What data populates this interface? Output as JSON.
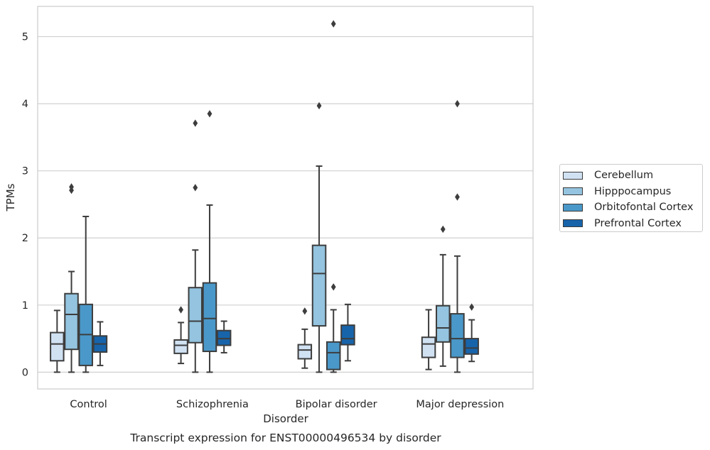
{
  "chart_data": {
    "type": "box",
    "title": "Transcript expression for ENST00000496534 by disorder",
    "xlabel": "Disorder",
    "ylabel": "TPMs",
    "ylim": [
      -0.25,
      5.45
    ],
    "yticks": [
      0,
      1,
      2,
      3,
      4,
      5
    ],
    "grid": true,
    "legend_position": "right",
    "categories": [
      "Control",
      "Schizophrenia",
      "Bipolar disorder",
      "Major depression"
    ],
    "series": [
      {
        "name": "Cerebellum",
        "color": "#d0e1f2",
        "boxes": [
          {
            "whislo": 0.0,
            "q1": 0.17,
            "med": 0.42,
            "q3": 0.59,
            "whishi": 0.92,
            "fliers": []
          },
          {
            "whislo": 0.13,
            "q1": 0.28,
            "med": 0.4,
            "q3": 0.48,
            "whishi": 0.74,
            "fliers": [
              0.93
            ]
          },
          {
            "whislo": 0.06,
            "q1": 0.2,
            "med": 0.33,
            "q3": 0.41,
            "whishi": 0.64,
            "fliers": [
              0.91
            ]
          },
          {
            "whislo": 0.04,
            "q1": 0.22,
            "med": 0.42,
            "q3": 0.52,
            "whishi": 0.93,
            "fliers": []
          }
        ]
      },
      {
        "name": "Hipppocampus",
        "color": "#94c4df",
        "boxes": [
          {
            "whislo": 0.0,
            "q1": 0.34,
            "med": 0.86,
            "q3": 1.17,
            "whishi": 1.5,
            "fliers": [
              2.71,
              2.76
            ]
          },
          {
            "whislo": 0.0,
            "q1": 0.44,
            "med": 0.76,
            "q3": 1.26,
            "whishi": 1.82,
            "fliers": [
              2.75,
              3.71
            ]
          },
          {
            "whislo": 0.0,
            "q1": 0.69,
            "med": 1.47,
            "q3": 1.89,
            "whishi": 3.07,
            "fliers": [
              3.97
            ]
          },
          {
            "whislo": 0.09,
            "q1": 0.45,
            "med": 0.66,
            "q3": 0.99,
            "whishi": 1.75,
            "fliers": [
              2.13
            ]
          }
        ]
      },
      {
        "name": "Orbitofontal Cortex",
        "color": "#4a98c9",
        "boxes": [
          {
            "whislo": 0.0,
            "q1": 0.1,
            "med": 0.56,
            "q3": 1.01,
            "whishi": 2.32,
            "fliers": []
          },
          {
            "whislo": 0.0,
            "q1": 0.31,
            "med": 0.8,
            "q3": 1.33,
            "whishi": 2.49,
            "fliers": [
              3.85
            ]
          },
          {
            "whislo": 0.0,
            "q1": 0.04,
            "med": 0.29,
            "q3": 0.45,
            "whishi": 0.93,
            "fliers": [
              1.27,
              5.19
            ]
          },
          {
            "whislo": 0.0,
            "q1": 0.22,
            "med": 0.5,
            "q3": 0.87,
            "whishi": 1.73,
            "fliers": [
              2.61,
              4.0
            ]
          }
        ]
      },
      {
        "name": "Prefrontal Cortex",
        "color": "#1764ab",
        "boxes": [
          {
            "whislo": 0.1,
            "q1": 0.3,
            "med": 0.42,
            "q3": 0.54,
            "whishi": 0.75,
            "fliers": []
          },
          {
            "whislo": 0.29,
            "q1": 0.4,
            "med": 0.5,
            "q3": 0.62,
            "whishi": 0.76,
            "fliers": []
          },
          {
            "whislo": 0.17,
            "q1": 0.41,
            "med": 0.5,
            "q3": 0.7,
            "whishi": 1.01,
            "fliers": []
          },
          {
            "whislo": 0.16,
            "q1": 0.27,
            "med": 0.36,
            "q3": 0.5,
            "whishi": 0.78,
            "fliers": [
              0.97
            ]
          }
        ]
      }
    ]
  }
}
